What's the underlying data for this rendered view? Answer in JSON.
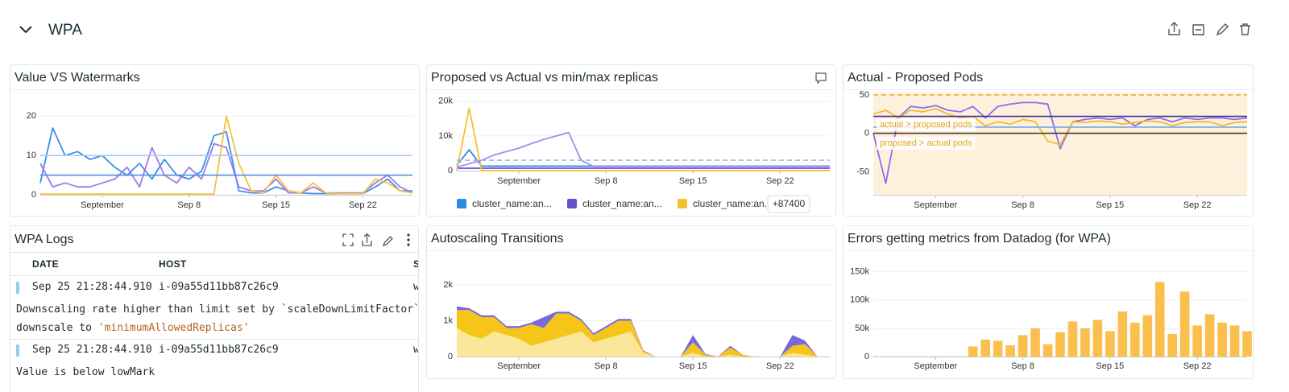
{
  "header": {
    "title": "WPA"
  },
  "logs": {
    "title": "WPA Logs",
    "columns": [
      "DATE",
      "HOST",
      "S"
    ],
    "rows": [
      {
        "date": "Sep 25 21:28:44.910",
        "host": "i-09a55d11bb87c26c9",
        "service": "w",
        "message": [
          "Downscaling rate higher than limit set by `scaleDownLimitFactor`, c",
          "downscale to"
        ],
        "message_code": "'minimumAllowedReplicas'"
      },
      {
        "date": "Sep 25 21:28:44.910",
        "host": "i-09a55d11bb87c26c9",
        "service": "w",
        "message": [
          "Value is below lowMark"
        ]
      }
    ]
  },
  "chart_data": [
    {
      "type": "line",
      "title": "Value VS Watermarks",
      "x": [
        -4,
        -3,
        -2,
        -1,
        0,
        1,
        2,
        3,
        4,
        5,
        6,
        7,
        8,
        9,
        10,
        11,
        12,
        13,
        14,
        15,
        16,
        17,
        18,
        19,
        20,
        21,
        22,
        23,
        24,
        25,
        26
      ],
      "xlim": [
        -4,
        26
      ],
      "ylim": [
        0,
        26
      ],
      "grid": true,
      "xticks": [
        {
          "value": 1,
          "label": "September"
        },
        {
          "value": 8,
          "label": "Sep 8"
        },
        {
          "value": 15,
          "label": "Sep 15"
        },
        {
          "value": 22,
          "label": "Sep 22"
        }
      ],
      "yticks": [
        0,
        10,
        20
      ],
      "reference_lines": [
        {
          "value": 10,
          "color": "#a8cdf5"
        },
        {
          "value": 5,
          "color": "#4a8fe0"
        }
      ],
      "series": [
        {
          "color": "#3d8ee8",
          "values": [
            3,
            17,
            10,
            11,
            9,
            10,
            7,
            5,
            8,
            4,
            9,
            5,
            4,
            6,
            15,
            16,
            1,
            0.5,
            0.5,
            2,
            1,
            0.5,
            0.3,
            0.3,
            0.3,
            0.3,
            0.3,
            2,
            4,
            1,
            1
          ]
        },
        {
          "color": "#9b7af0",
          "values": [
            8,
            2,
            3,
            2,
            2,
            3,
            4,
            7,
            2,
            12,
            5,
            3,
            7,
            4,
            13,
            12,
            2,
            1,
            1,
            4,
            0.5,
            0.5,
            2,
            0.5,
            0.5,
            0.5,
            0.5,
            3,
            5,
            2,
            0.5
          ]
        },
        {
          "color": "#f5c242",
          "values": [
            0.2,
            0.2,
            0.2,
            0.2,
            0.2,
            0.2,
            0.2,
            0.2,
            0.2,
            0.2,
            0.2,
            0.2,
            0.2,
            0.2,
            0.2,
            20,
            8,
            1,
            0.5,
            5,
            1,
            0.5,
            3,
            0.5,
            0.3,
            0.3,
            0.3,
            4,
            3,
            1,
            0.5
          ]
        }
      ]
    },
    {
      "type": "line",
      "title": "Proposed vs Actual vs min/max replicas",
      "x": [
        -4,
        -3,
        -2,
        -1,
        0,
        1,
        2,
        3,
        4,
        5,
        6,
        7,
        8,
        9,
        10,
        11,
        12,
        13,
        14,
        15,
        16,
        17,
        18,
        19,
        20,
        21,
        22,
        23,
        24,
        25,
        26
      ],
      "xlim": [
        -4,
        26
      ],
      "ylim": [
        0,
        22500
      ],
      "grid": true,
      "xticks": [
        {
          "value": 1,
          "label": "September"
        },
        {
          "value": 8,
          "label": "Sep 8"
        },
        {
          "value": 15,
          "label": "Sep 15"
        },
        {
          "value": 22,
          "label": "Sep 22"
        }
      ],
      "yticks": [
        0,
        {
          "value": 10000,
          "label": "10k"
        },
        {
          "value": 20000,
          "label": "20k"
        }
      ],
      "reference_lines": [
        {
          "value": 3000,
          "color": "#8fbcf0",
          "dash": true
        }
      ],
      "series": [
        {
          "name": "cluster_name:an...",
          "color": "#2b8ce0",
          "values": [
            1500,
            6000,
            1300,
            1300,
            1300,
            1300,
            1300,
            1300,
            1300,
            1300,
            1300,
            1300,
            1300,
            1300,
            1300,
            1300,
            1300,
            1300,
            1300,
            1300,
            1300,
            1300,
            1300,
            1300,
            1300,
            1300,
            1300,
            1300,
            1300,
            1300,
            1300
          ]
        },
        {
          "name": "cluster_name:an...",
          "color": "#6a4fc8",
          "values": [
            700,
            700,
            700,
            700,
            700,
            700,
            700,
            700,
            700,
            700,
            700,
            700,
            700,
            700,
            700,
            700,
            700,
            700,
            700,
            700,
            700,
            700,
            700,
            700,
            700,
            700,
            700,
            700,
            700,
            700,
            700
          ]
        },
        {
          "name": "cluster_name:an...",
          "color": "#f2c12e",
          "values": [
            0,
            18000,
            0,
            0,
            0,
            0,
            0,
            0,
            0,
            0,
            0,
            0,
            0,
            0,
            0,
            0,
            0,
            0,
            0,
            0,
            0,
            0,
            0,
            0,
            0,
            0,
            0,
            0,
            0,
            0,
            0
          ]
        },
        {
          "color": "#a58af5",
          "values": [
            1000,
            2000,
            3000,
            4500,
            5500,
            6500,
            7800,
            9000,
            10000,
            11000,
            3000,
            1200,
            1200,
            1200,
            1200,
            1200,
            1200,
            1200,
            1200,
            1200,
            1200,
            1200,
            1200,
            1200,
            1200,
            1200,
            1200,
            1200,
            1200,
            1200,
            1200
          ]
        }
      ],
      "legend_more": "+87400"
    },
    {
      "type": "line",
      "title": "Actual - Proposed Pods",
      "x": [
        -4,
        -3,
        -2,
        -1,
        0,
        1,
        2,
        3,
        4,
        5,
        6,
        7,
        8,
        9,
        10,
        11,
        12,
        13,
        14,
        15,
        16,
        17,
        18,
        19,
        20,
        21,
        22,
        23,
        24,
        25,
        26
      ],
      "xlim": [
        -4,
        26
      ],
      "ylim": [
        -80,
        53
      ],
      "grid": true,
      "background": "#fdf1dc",
      "xticks": [
        {
          "value": 1,
          "label": "September"
        },
        {
          "value": 8,
          "label": "Sep 8"
        },
        {
          "value": 15,
          "label": "Sep 15"
        },
        {
          "value": 22,
          "label": "Sep 22"
        }
      ],
      "yticks": [
        -50,
        0,
        50
      ],
      "reference_lines": [
        {
          "value": 50,
          "color": "#f0a830",
          "dash": true
        },
        {
          "value": 22,
          "color": "#3d2f99"
        },
        {
          "value": 8,
          "color": "#6fa6e8"
        },
        {
          "value": 0,
          "color": "#4a3b2a"
        }
      ],
      "annotations": [
        "actual > proposed pods",
        "proposed > actual pods"
      ],
      "series": [
        {
          "color": "#8b6ff0",
          "values": [
            0,
            -65,
            20,
            35,
            33,
            36,
            30,
            28,
            35,
            20,
            35,
            38,
            40,
            40,
            38,
            -20,
            15,
            18,
            20,
            18,
            20,
            10,
            18,
            20,
            15,
            20,
            18,
            20,
            20,
            18,
            20
          ]
        },
        {
          "color": "#f5b82e",
          "values": [
            25,
            30,
            20,
            30,
            28,
            32,
            25,
            20,
            22,
            10,
            15,
            12,
            18,
            15,
            -10,
            -15,
            15,
            14,
            16,
            15,
            12,
            14,
            16,
            15,
            10,
            14,
            15,
            15,
            10,
            14,
            15
          ]
        }
      ]
    },
    {
      "type": "area",
      "title": "Autoscaling Transitions",
      "x": [
        -4,
        -3,
        -2,
        -1,
        0,
        1,
        2,
        3,
        4,
        5,
        6,
        7,
        8,
        9,
        10,
        11,
        12,
        13,
        14,
        15,
        16,
        17,
        18,
        19,
        20,
        21,
        22,
        23,
        24,
        25,
        26
      ],
      "xlim": [
        -4,
        26
      ],
      "ylim": [
        0,
        2200
      ],
      "grid": true,
      "xticks": [
        {
          "value": 1,
          "label": "September"
        },
        {
          "value": 8,
          "label": "Sep 8"
        },
        {
          "value": 15,
          "label": "Sep 15"
        },
        {
          "value": 22,
          "label": "Sep 22"
        }
      ],
      "yticks": [
        0,
        {
          "value": 1000,
          "label": "1k"
        },
        {
          "value": 2000,
          "label": "2k"
        }
      ],
      "series": [
        {
          "color": "#fbe79a",
          "values": [
            800,
            600,
            500,
            700,
            600,
            500,
            300,
            400,
            500,
            600,
            700,
            400,
            500,
            600,
            700,
            100,
            0,
            0,
            0,
            100,
            0,
            0,
            50,
            0,
            0,
            0,
            0,
            100,
            50,
            0,
            0
          ]
        },
        {
          "color": "#f5c518",
          "values": [
            500,
            700,
            600,
            400,
            200,
            300,
            600,
            400,
            700,
            600,
            300,
            200,
            300,
            400,
            300,
            50,
            0,
            0,
            0,
            300,
            50,
            0,
            200,
            50,
            0,
            0,
            0,
            200,
            300,
            0,
            0
          ]
        },
        {
          "color": "#7a68dc",
          "values": [
            100,
            50,
            50,
            50,
            50,
            50,
            50,
            300,
            50,
            50,
            50,
            50,
            50,
            50,
            50,
            20,
            0,
            0,
            0,
            200,
            20,
            0,
            50,
            0,
            0,
            0,
            0,
            300,
            100,
            0,
            0
          ]
        }
      ]
    },
    {
      "type": "bar",
      "title": "Errors getting metrics from Datadog (for WPA)",
      "x": [
        -4,
        -3,
        -2,
        -1,
        0,
        1,
        2,
        3,
        4,
        5,
        6,
        7,
        8,
        9,
        10,
        11,
        12,
        13,
        14,
        15,
        16,
        17,
        18,
        19,
        20,
        21,
        22,
        23,
        24,
        25,
        26
      ],
      "xlim": [
        -4,
        26
      ],
      "ylim": [
        0,
        161000
      ],
      "grid": true,
      "xticks": [
        {
          "value": 1,
          "label": "September"
        },
        {
          "value": 8,
          "label": "Sep 8"
        },
        {
          "value": 15,
          "label": "Sep 15"
        },
        {
          "value": 22,
          "label": "Sep 22"
        }
      ],
      "yticks": [
        0,
        {
          "value": 50000,
          "label": "50k"
        },
        {
          "value": 100000,
          "label": "100k"
        },
        {
          "value": 150000,
          "label": "150k"
        }
      ],
      "series": [
        {
          "color": "#fbbf4d",
          "values": [
            500,
            500,
            500,
            500,
            500,
            500,
            500,
            500,
            18000,
            30000,
            28000,
            20000,
            38000,
            50000,
            22000,
            43000,
            62000,
            50000,
            65000,
            45000,
            80000,
            60000,
            73000,
            132000,
            40000,
            115000,
            55000,
            75000,
            60000,
            55000,
            45000
          ]
        }
      ]
    }
  ]
}
